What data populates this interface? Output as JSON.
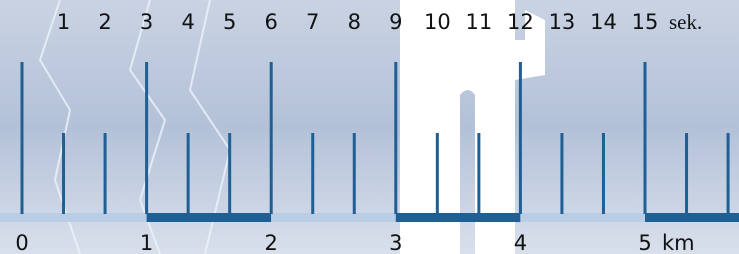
{
  "seconds": {
    "labels": [
      1,
      2,
      3,
      4,
      5,
      6,
      7,
      8,
      9,
      10,
      11,
      12,
      13,
      14,
      15
    ],
    "unit": "sek."
  },
  "kilometers": {
    "labels": [
      0,
      1,
      2,
      3,
      4,
      5
    ],
    "unit": "km"
  }
}
